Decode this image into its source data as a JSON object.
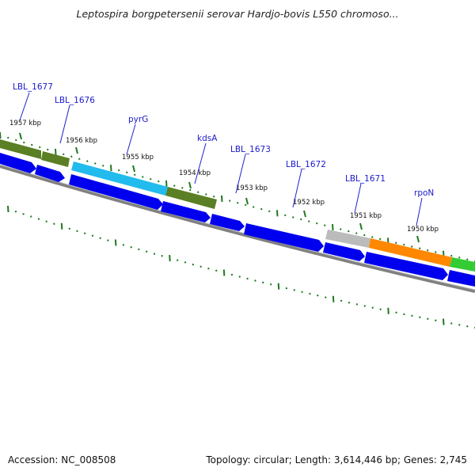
{
  "title": "Leptospira borgpetersenii serovar Hardjo-bovis L550 chromoso...",
  "footer": {
    "accession": "Accession: NC_008508",
    "summary": "Topology: circular; Length: 3,614,446 bp; Genes: 2,745"
  },
  "colors": {
    "backbone": "#888888",
    "forward_gene": "#0000ee",
    "green": "#5a7f24",
    "cyan": "#22bbee",
    "gray": "#bbbbbb",
    "orange": "#ff8800",
    "bright_green": "#33cc33",
    "gene_label": "#1a1acc",
    "tick": "#1f7a1f"
  },
  "kbp_ticks": [
    "1957 kbp",
    "1956 kbp",
    "1955 kbp",
    "1954 kbp",
    "1953 kbp",
    "1952 kbp",
    "1951 kbp",
    "1950 kbp"
  ],
  "gene_labels": [
    "LBL_1677",
    "LBL_1676",
    "pyrG",
    "kdsA",
    "LBL_1673",
    "LBL_1672",
    "LBL_1671",
    "rpoN"
  ]
}
